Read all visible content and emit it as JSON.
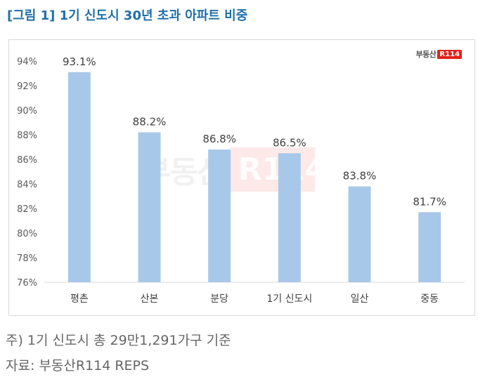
{
  "title": "[그림 1] 1기 신도시 30년 초과 아파트 비중",
  "logo": {
    "text": "부동산",
    "badge": "R114"
  },
  "watermark": {
    "text": "부동산",
    "badge": "R114"
  },
  "notes": [
    "주) 1기 신도시 총 29만1,291가구 기준",
    "자료: 부동산R114 REPS"
  ],
  "colors": {
    "bar": "#a8c8e9",
    "title": "#1f6fa8",
    "grid": "#d9d9d9"
  },
  "chart_data": {
    "type": "bar",
    "categories": [
      "평촌",
      "산본",
      "분당",
      "1기 신도시",
      "일산",
      "중동"
    ],
    "values": [
      93.1,
      88.2,
      86.8,
      86.5,
      83.8,
      81.7
    ],
    "data_labels": [
      "93.1%",
      "88.2%",
      "86.8%",
      "86.5%",
      "83.8%",
      "81.7%"
    ],
    "ylim": [
      76,
      94
    ],
    "yticks": [
      76,
      78,
      80,
      82,
      84,
      86,
      88,
      90,
      92,
      94
    ],
    "ytick_labels": [
      "76%",
      "78%",
      "80%",
      "82%",
      "84%",
      "86%",
      "88%",
      "90%",
      "92%",
      "94%"
    ],
    "grid": false
  }
}
